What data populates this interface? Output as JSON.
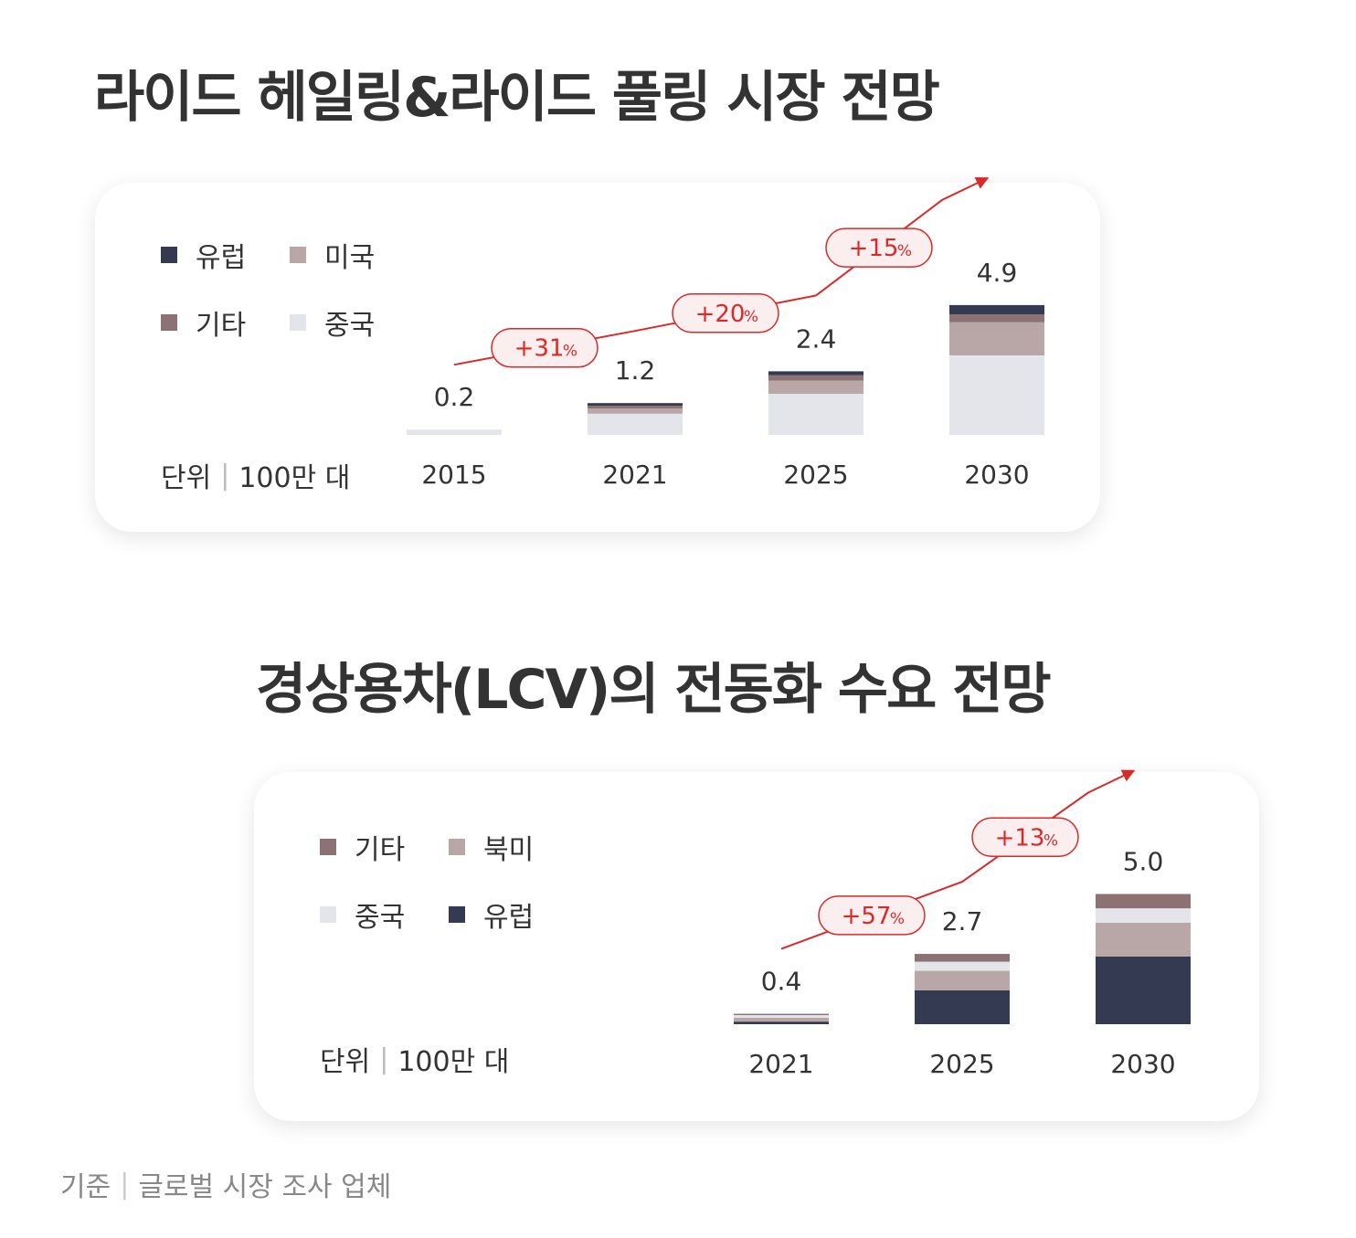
{
  "colors": {
    "europe": "#333a52",
    "usa": "#b9a7a7",
    "other": "#8c7272",
    "china": "#e3e5ea",
    "trend": "#d92a2a",
    "badge_fill": "#faeeee"
  },
  "panel1": {
    "title": "라이드 헤일링&라이드 풀링 시장 전망",
    "unit": {
      "label": "단위",
      "value": "100만 대"
    },
    "legend": [
      {
        "label": "유럽",
        "color": "#333a52"
      },
      {
        "label": "미국",
        "color": "#b9a7a7"
      },
      {
        "label": "기타",
        "color": "#8c7272"
      },
      {
        "label": "중국",
        "color": "#e3e5ea"
      }
    ]
  },
  "panel2": {
    "title": "경상용차(LCV)의 전동화 수요 전망",
    "unit": {
      "label": "단위",
      "value": "100만 대"
    },
    "legend": [
      {
        "label": "기타",
        "color": "#8c7272"
      },
      {
        "label": "북미",
        "color": "#b9a7a7"
      },
      {
        "label": "중국",
        "color": "#e3e5ea"
      },
      {
        "label": "유럽",
        "color": "#333a52"
      }
    ]
  },
  "source": {
    "label": "기준",
    "value": "글로벌 시장 조사 업체"
  },
  "chart_data": [
    {
      "type": "bar",
      "stacked": true,
      "title": "라이드 헤일링&라이드 풀링 시장 전망",
      "unit": "100만 대",
      "categories": [
        "2015",
        "2021",
        "2025",
        "2030"
      ],
      "totals": [
        0.2,
        1.2,
        2.4,
        4.9
      ],
      "total_labels": [
        "0.2",
        "1.2",
        "2.4",
        "4.9"
      ],
      "series": [
        {
          "name": "중국",
          "color": "#e3e5ea",
          "values": [
            0.2,
            0.8,
            1.55,
            3.0
          ]
        },
        {
          "name": "미국",
          "color": "#b9a7a7",
          "values": [
            0.0,
            0.2,
            0.5,
            1.25
          ]
        },
        {
          "name": "기타",
          "color": "#8c7272",
          "values": [
            0.0,
            0.1,
            0.2,
            0.3
          ]
        },
        {
          "name": "유럽",
          "color": "#333a52",
          "values": [
            0.0,
            0.1,
            0.15,
            0.35
          ]
        }
      ],
      "growth": [
        "+31",
        "+20",
        "+15"
      ],
      "growth_unit": "%"
    },
    {
      "type": "bar",
      "stacked": true,
      "title": "경상용차(LCV)의 전동화 수요 전망",
      "unit": "100만 대",
      "categories": [
        "2021",
        "2025",
        "2030"
      ],
      "totals": [
        0.4,
        2.7,
        5.0
      ],
      "total_labels": [
        "0.4",
        "2.7",
        "5.0"
      ],
      "series": [
        {
          "name": "유럽",
          "color": "#333a52",
          "values": [
            0.1,
            1.3,
            2.6
          ]
        },
        {
          "name": "북미",
          "color": "#b9a7a7",
          "values": [
            0.15,
            0.75,
            1.3
          ]
        },
        {
          "name": "중국",
          "color": "#e3e5ea",
          "values": [
            0.1,
            0.35,
            0.55
          ]
        },
        {
          "name": "기타",
          "color": "#8c7272",
          "values": [
            0.05,
            0.3,
            0.55
          ]
        }
      ],
      "growth": [
        "+57",
        "+13"
      ],
      "growth_unit": "%"
    }
  ]
}
